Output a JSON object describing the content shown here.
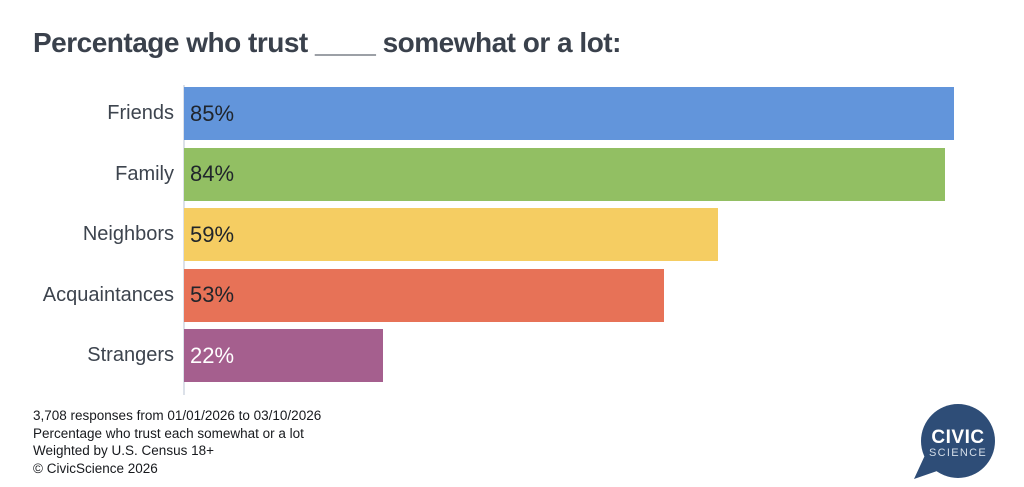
{
  "title": "Percentage who trust ____ somewhat or a lot:",
  "chart_data": {
    "type": "bar",
    "orientation": "horizontal",
    "title": "Percentage who trust ____ somewhat or a lot:",
    "categories": [
      "Friends",
      "Family",
      "Neighbors",
      "Acquaintances",
      "Strangers"
    ],
    "values": [
      85,
      84,
      59,
      53,
      22
    ],
    "value_labels": [
      "85%",
      "84%",
      "59%",
      "53%",
      "22%"
    ],
    "bar_colors": [
      "#6295db",
      "#92bf63",
      "#f5cd62",
      "#e77257",
      "#a55f8e"
    ],
    "value_label_colors": [
      "#20252b",
      "#20252b",
      "#20252b",
      "#20252b",
      "#ffffff"
    ],
    "xlabel": "",
    "ylabel": "",
    "xlim": [
      0,
      85.45
    ],
    "grid": false,
    "legend": false,
    "value_label_position": "inside-start"
  },
  "footer": {
    "lines": [
      "3,708 responses from 01/01/2026 to 03/10/2026",
      "Percentage who trust each somewhat or a lot",
      "Weighted by U.S. Census 18+",
      "© CivicScience 2026"
    ]
  },
  "logo": {
    "line1": "CIVIC",
    "line2": "SCIENCE",
    "bubble_color": "#2e4d77",
    "text_color": "#ffffff",
    "subtext_color": "#d5dee9"
  },
  "colors": {
    "background": "#ffffff",
    "title_text": "#3a414c",
    "category_label": "#3d444e",
    "axis_line": "#dce1e9",
    "footer_text": "#17191d"
  }
}
